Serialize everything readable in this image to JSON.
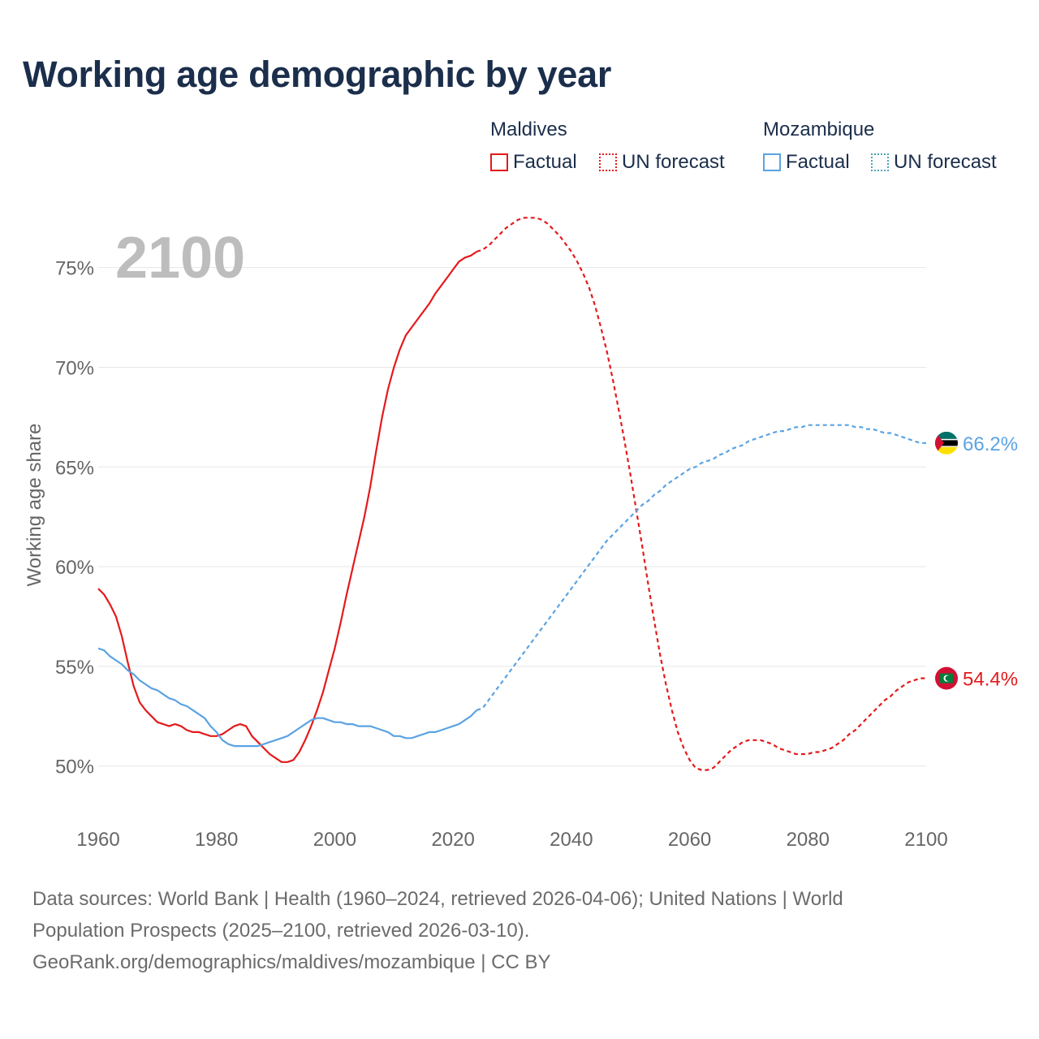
{
  "title": "Working age demographic by year",
  "legend": {
    "groups": [
      {
        "name": "Maldives",
        "factual_label": "Factual",
        "forecast_label": "UN forecast"
      },
      {
        "name": "Mozambique",
        "factual_label": "Factual",
        "forecast_label": "UN forecast"
      }
    ]
  },
  "year_label": "2100",
  "footer": {
    "line1": "Data sources: World Bank | Health (1960–2024, retrieved 2026-04-06); United Nations | World",
    "line2": "Population Prospects (2025–2100, retrieved 2026-03-10).",
    "line3": "GeoRank.org/demographics/maldives/mozambique | CC BY"
  },
  "colors": {
    "maldives": "#e41a1c",
    "mozambique": "#5ba3e3",
    "grid": "#e6e6e6",
    "axis_text": "#666666",
    "year_watermark": "#bdbdbd"
  },
  "chart_data": {
    "type": "line",
    "title": "Working age demographic by year",
    "ylabel": "Working age share",
    "xlabel": "",
    "xlim": [
      1960,
      2100
    ],
    "ylim": [
      47.3,
      78
    ],
    "x_ticks": [
      1960,
      1980,
      2000,
      2020,
      2040,
      2060,
      2080,
      2100
    ],
    "y_ticks": [
      50,
      55,
      60,
      65,
      70,
      75
    ],
    "y_tick_suffix": "%",
    "factual_end_year": 2024,
    "series": [
      {
        "name": "Maldives",
        "color": "#e41a1c",
        "end_label": "54.4%",
        "points": [
          [
            1960,
            58.9
          ],
          [
            1961,
            58.6
          ],
          [
            1962,
            58.1
          ],
          [
            1963,
            57.5
          ],
          [
            1964,
            56.5
          ],
          [
            1965,
            55.2
          ],
          [
            1966,
            54.0
          ],
          [
            1967,
            53.2
          ],
          [
            1968,
            52.8
          ],
          [
            1969,
            52.5
          ],
          [
            1970,
            52.2
          ],
          [
            1971,
            52.1
          ],
          [
            1972,
            52.0
          ],
          [
            1973,
            52.1
          ],
          [
            1974,
            52.0
          ],
          [
            1975,
            51.8
          ],
          [
            1976,
            51.7
          ],
          [
            1977,
            51.7
          ],
          [
            1978,
            51.6
          ],
          [
            1979,
            51.5
          ],
          [
            1980,
            51.5
          ],
          [
            1981,
            51.6
          ],
          [
            1982,
            51.8
          ],
          [
            1983,
            52.0
          ],
          [
            1984,
            52.1
          ],
          [
            1985,
            52.0
          ],
          [
            1986,
            51.5
          ],
          [
            1987,
            51.2
          ],
          [
            1988,
            50.9
          ],
          [
            1989,
            50.6
          ],
          [
            1990,
            50.4
          ],
          [
            1991,
            50.2
          ],
          [
            1992,
            50.2
          ],
          [
            1993,
            50.3
          ],
          [
            1994,
            50.7
          ],
          [
            1995,
            51.3
          ],
          [
            1996,
            52.0
          ],
          [
            1997,
            52.8
          ],
          [
            1998,
            53.7
          ],
          [
            1999,
            54.8
          ],
          [
            2000,
            55.9
          ],
          [
            2001,
            57.2
          ],
          [
            2002,
            58.6
          ],
          [
            2003,
            59.9
          ],
          [
            2004,
            61.2
          ],
          [
            2005,
            62.5
          ],
          [
            2006,
            64.0
          ],
          [
            2007,
            65.8
          ],
          [
            2008,
            67.5
          ],
          [
            2009,
            68.9
          ],
          [
            2010,
            70.0
          ],
          [
            2011,
            70.9
          ],
          [
            2012,
            71.6
          ],
          [
            2013,
            72.0
          ],
          [
            2014,
            72.4
          ],
          [
            2015,
            72.8
          ],
          [
            2016,
            73.2
          ],
          [
            2017,
            73.7
          ],
          [
            2018,
            74.1
          ],
          [
            2019,
            74.5
          ],
          [
            2020,
            74.9
          ],
          [
            2021,
            75.3
          ],
          [
            2022,
            75.5
          ],
          [
            2023,
            75.6
          ],
          [
            2024,
            75.8
          ],
          [
            2025,
            75.9
          ],
          [
            2026,
            76.1
          ],
          [
            2027,
            76.4
          ],
          [
            2028,
            76.7
          ],
          [
            2029,
            77.0
          ],
          [
            2030,
            77.2
          ],
          [
            2031,
            77.4
          ],
          [
            2032,
            77.5
          ],
          [
            2033,
            77.5
          ],
          [
            2034,
            77.5
          ],
          [
            2035,
            77.4
          ],
          [
            2036,
            77.2
          ],
          [
            2037,
            76.9
          ],
          [
            2038,
            76.6
          ],
          [
            2039,
            76.2
          ],
          [
            2040,
            75.8
          ],
          [
            2041,
            75.3
          ],
          [
            2042,
            74.7
          ],
          [
            2043,
            74.0
          ],
          [
            2044,
            73.1
          ],
          [
            2045,
            72.0
          ],
          [
            2046,
            70.8
          ],
          [
            2047,
            69.4
          ],
          [
            2048,
            67.9
          ],
          [
            2049,
            66.3
          ],
          [
            2050,
            64.6
          ],
          [
            2051,
            62.8
          ],
          [
            2052,
            61.0
          ],
          [
            2053,
            59.1
          ],
          [
            2054,
            57.3
          ],
          [
            2055,
            55.6
          ],
          [
            2056,
            54.1
          ],
          [
            2057,
            52.8
          ],
          [
            2058,
            51.7
          ],
          [
            2059,
            50.9
          ],
          [
            2060,
            50.3
          ],
          [
            2061,
            49.9
          ],
          [
            2062,
            49.8
          ],
          [
            2063,
            49.8
          ],
          [
            2064,
            49.9
          ],
          [
            2065,
            50.2
          ],
          [
            2066,
            50.5
          ],
          [
            2067,
            50.8
          ],
          [
            2068,
            51.0
          ],
          [
            2069,
            51.2
          ],
          [
            2070,
            51.3
          ],
          [
            2071,
            51.3
          ],
          [
            2072,
            51.3
          ],
          [
            2073,
            51.2
          ],
          [
            2074,
            51.1
          ],
          [
            2075,
            50.9
          ],
          [
            2076,
            50.8
          ],
          [
            2077,
            50.7
          ],
          [
            2078,
            50.6
          ],
          [
            2079,
            50.6
          ],
          [
            2080,
            50.6
          ],
          [
            2081,
            50.7
          ],
          [
            2082,
            50.7
          ],
          [
            2083,
            50.8
          ],
          [
            2084,
            50.9
          ],
          [
            2085,
            51.1
          ],
          [
            2086,
            51.3
          ],
          [
            2087,
            51.6
          ],
          [
            2088,
            51.8
          ],
          [
            2089,
            52.1
          ],
          [
            2090,
            52.4
          ],
          [
            2091,
            52.7
          ],
          [
            2092,
            53.0
          ],
          [
            2093,
            53.3
          ],
          [
            2094,
            53.5
          ],
          [
            2095,
            53.8
          ],
          [
            2096,
            54.0
          ],
          [
            2097,
            54.2
          ],
          [
            2098,
            54.3
          ],
          [
            2099,
            54.4
          ],
          [
            2100,
            54.4
          ]
        ]
      },
      {
        "name": "Mozambique",
        "color": "#5ba3e3",
        "end_label": "66.2%",
        "points": [
          [
            1960,
            55.9
          ],
          [
            1961,
            55.8
          ],
          [
            1962,
            55.5
          ],
          [
            1963,
            55.3
          ],
          [
            1964,
            55.1
          ],
          [
            1965,
            54.8
          ],
          [
            1966,
            54.6
          ],
          [
            1967,
            54.3
          ],
          [
            1968,
            54.1
          ],
          [
            1969,
            53.9
          ],
          [
            1970,
            53.8
          ],
          [
            1971,
            53.6
          ],
          [
            1972,
            53.4
          ],
          [
            1973,
            53.3
          ],
          [
            1974,
            53.1
          ],
          [
            1975,
            53.0
          ],
          [
            1976,
            52.8
          ],
          [
            1977,
            52.6
          ],
          [
            1978,
            52.4
          ],
          [
            1979,
            52.0
          ],
          [
            1980,
            51.7
          ],
          [
            1981,
            51.3
          ],
          [
            1982,
            51.1
          ],
          [
            1983,
            51.0
          ],
          [
            1984,
            51.0
          ],
          [
            1985,
            51.0
          ],
          [
            1986,
            51.0
          ],
          [
            1987,
            51.0
          ],
          [
            1988,
            51.1
          ],
          [
            1989,
            51.2
          ],
          [
            1990,
            51.3
          ],
          [
            1991,
            51.4
          ],
          [
            1992,
            51.5
          ],
          [
            1993,
            51.7
          ],
          [
            1994,
            51.9
          ],
          [
            1995,
            52.1
          ],
          [
            1996,
            52.3
          ],
          [
            1997,
            52.4
          ],
          [
            1998,
            52.4
          ],
          [
            1999,
            52.3
          ],
          [
            2000,
            52.2
          ],
          [
            2001,
            52.2
          ],
          [
            2002,
            52.1
          ],
          [
            2003,
            52.1
          ],
          [
            2004,
            52.0
          ],
          [
            2005,
            52.0
          ],
          [
            2006,
            52.0
          ],
          [
            2007,
            51.9
          ],
          [
            2008,
            51.8
          ],
          [
            2009,
            51.7
          ],
          [
            2010,
            51.5
          ],
          [
            2011,
            51.5
          ],
          [
            2012,
            51.4
          ],
          [
            2013,
            51.4
          ],
          [
            2014,
            51.5
          ],
          [
            2015,
            51.6
          ],
          [
            2016,
            51.7
          ],
          [
            2017,
            51.7
          ],
          [
            2018,
            51.8
          ],
          [
            2019,
            51.9
          ],
          [
            2020,
            52.0
          ],
          [
            2021,
            52.1
          ],
          [
            2022,
            52.3
          ],
          [
            2023,
            52.5
          ],
          [
            2024,
            52.8
          ],
          [
            2025,
            52.9
          ],
          [
            2026,
            53.3
          ],
          [
            2027,
            53.7
          ],
          [
            2028,
            54.1
          ],
          [
            2029,
            54.5
          ],
          [
            2030,
            54.9
          ],
          [
            2031,
            55.3
          ],
          [
            2032,
            55.7
          ],
          [
            2033,
            56.1
          ],
          [
            2034,
            56.5
          ],
          [
            2035,
            56.9
          ],
          [
            2036,
            57.3
          ],
          [
            2037,
            57.7
          ],
          [
            2038,
            58.1
          ],
          [
            2039,
            58.5
          ],
          [
            2040,
            58.9
          ],
          [
            2041,
            59.3
          ],
          [
            2042,
            59.7
          ],
          [
            2043,
            60.1
          ],
          [
            2044,
            60.5
          ],
          [
            2045,
            60.9
          ],
          [
            2046,
            61.3
          ],
          [
            2047,
            61.6
          ],
          [
            2048,
            61.9
          ],
          [
            2049,
            62.2
          ],
          [
            2050,
            62.5
          ],
          [
            2051,
            62.8
          ],
          [
            2052,
            63.1
          ],
          [
            2053,
            63.3
          ],
          [
            2054,
            63.6
          ],
          [
            2055,
            63.8
          ],
          [
            2056,
            64.1
          ],
          [
            2057,
            64.3
          ],
          [
            2058,
            64.5
          ],
          [
            2059,
            64.7
          ],
          [
            2060,
            64.9
          ],
          [
            2061,
            65.0
          ],
          [
            2062,
            65.2
          ],
          [
            2063,
            65.3
          ],
          [
            2064,
            65.4
          ],
          [
            2065,
            65.6
          ],
          [
            2066,
            65.7
          ],
          [
            2067,
            65.9
          ],
          [
            2068,
            66.0
          ],
          [
            2069,
            66.1
          ],
          [
            2070,
            66.3
          ],
          [
            2071,
            66.4
          ],
          [
            2072,
            66.5
          ],
          [
            2073,
            66.6
          ],
          [
            2074,
            66.7
          ],
          [
            2075,
            66.8
          ],
          [
            2076,
            66.8
          ],
          [
            2077,
            66.9
          ],
          [
            2078,
            67.0
          ],
          [
            2079,
            67.0
          ],
          [
            2080,
            67.1
          ],
          [
            2081,
            67.1
          ],
          [
            2082,
            67.1
          ],
          [
            2083,
            67.1
          ],
          [
            2084,
            67.1
          ],
          [
            2085,
            67.1
          ],
          [
            2086,
            67.1
          ],
          [
            2087,
            67.1
          ],
          [
            2088,
            67.0
          ],
          [
            2089,
            67.0
          ],
          [
            2090,
            66.9
          ],
          [
            2091,
            66.9
          ],
          [
            2092,
            66.8
          ],
          [
            2093,
            66.7
          ],
          [
            2094,
            66.7
          ],
          [
            2095,
            66.6
          ],
          [
            2096,
            66.5
          ],
          [
            2097,
            66.4
          ],
          [
            2098,
            66.3
          ],
          [
            2099,
            66.2
          ],
          [
            2100,
            66.2
          ]
        ]
      }
    ]
  }
}
